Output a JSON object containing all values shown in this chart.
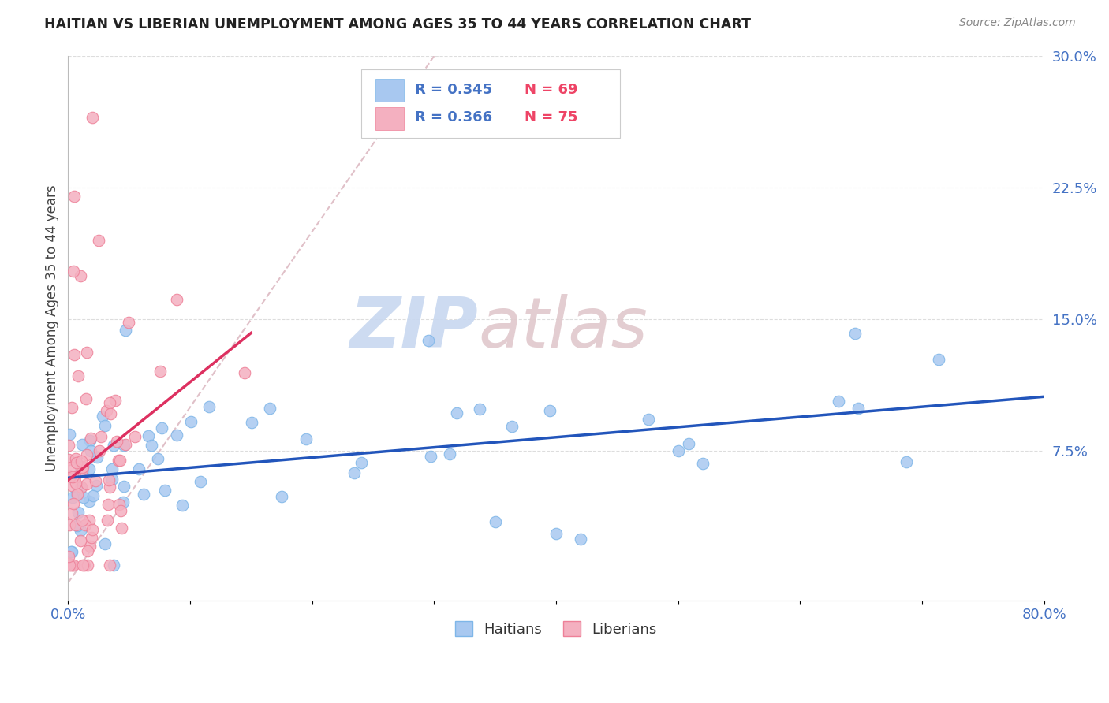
{
  "title": "HAITIAN VS LIBERIAN UNEMPLOYMENT AMONG AGES 35 TO 44 YEARS CORRELATION CHART",
  "source": "Source: ZipAtlas.com",
  "ylabel": "Unemployment Among Ages 35 to 44 years",
  "xlim": [
    0.0,
    0.8
  ],
  "ylim": [
    -0.01,
    0.3
  ],
  "haitian_color": "#A8C8F0",
  "haitian_edge_color": "#7EB6E8",
  "liberian_color": "#F4B0C0",
  "liberian_edge_color": "#EE8098",
  "haitian_line_color": "#2255BB",
  "liberian_line_color": "#DD3060",
  "diag_line_color": "#E0C0C8",
  "grid_color": "#DDDDDD",
  "R_haitian": 0.345,
  "N_haitian": 69,
  "R_liberian": 0.366,
  "N_liberian": 75,
  "watermark_zip_color": "#C8D8F0",
  "watermark_atlas_color": "#D8C8C8",
  "tick_color": "#4472C4",
  "title_color": "#222222",
  "source_color": "#888888",
  "ylabel_color": "#444444"
}
